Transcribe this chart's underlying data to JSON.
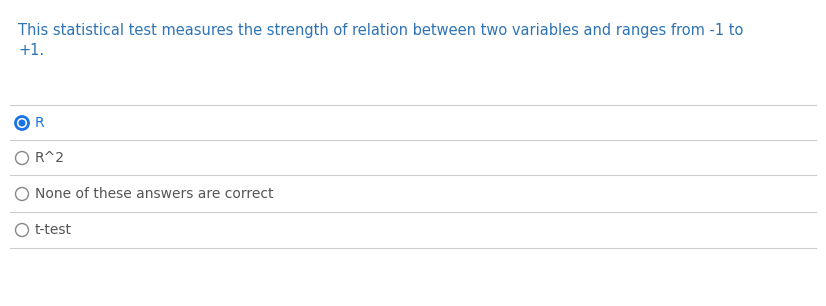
{
  "question_line1": "This statistical test measures the strength of relation between two variables and ranges from -1 to",
  "question_line2": "+1.",
  "question_color": "#2e74b5",
  "options": [
    "R",
    "R^2",
    "None of these answers are correct",
    "t-test"
  ],
  "selected_index": 0,
  "option_text_color": "#555555",
  "selected_circle_color": "#1a73e8",
  "unselected_circle_color": "#888888",
  "separator_color": "#cccccc",
  "background_color": "#ffffff",
  "font_size_question": 10.5,
  "font_size_options": 10.0,
  "fig_width": 8.26,
  "fig_height": 3.06,
  "dpi": 100
}
